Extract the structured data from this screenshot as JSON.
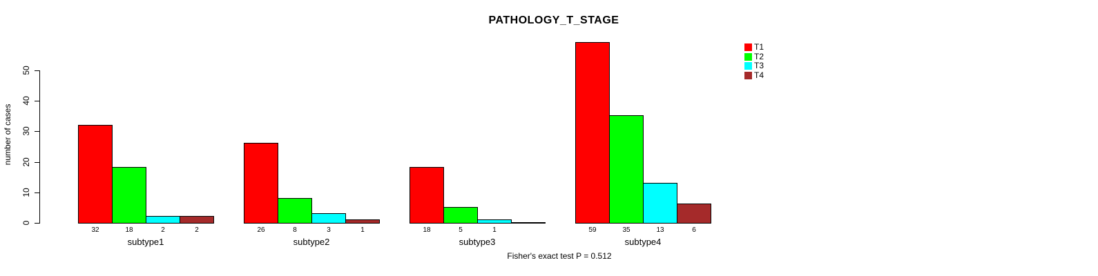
{
  "title": "PATHOLOGY_T_STAGE",
  "caption": "Fisher's exact test P = 0.512",
  "chart_data": {
    "type": "bar",
    "grouped": true,
    "title": "PATHOLOGY_T_STAGE",
    "xlabel": "",
    "ylabel": "number of cases",
    "categories": [
      "subtype1",
      "subtype2",
      "subtype3",
      "subtype4"
    ],
    "series": [
      {
        "name": "T1",
        "color": "#FF0000",
        "values": [
          32,
          26,
          18,
          59
        ]
      },
      {
        "name": "T2",
        "color": "#00FF00",
        "values": [
          18,
          8,
          5,
          35
        ]
      },
      {
        "name": "T3",
        "color": "#00FFFF",
        "values": [
          2,
          3,
          1,
          13
        ]
      },
      {
        "name": "T4",
        "color": "#A52A2A",
        "values": [
          2,
          1,
          0,
          6
        ]
      }
    ],
    "value_labels": [
      [
        "32",
        "18",
        "2",
        "2"
      ],
      [
        "26",
        "8",
        "3",
        "1"
      ],
      [
        "18",
        "5",
        "1",
        ""
      ],
      [
        "59",
        "35",
        "13",
        "6"
      ]
    ],
    "yticks": [
      0,
      10,
      20,
      30,
      40,
      50
    ],
    "ylim": [
      0,
      50
    ],
    "grid": false,
    "legend_position": "right",
    "annotation": "Fisher's exact test P = 0.512"
  }
}
